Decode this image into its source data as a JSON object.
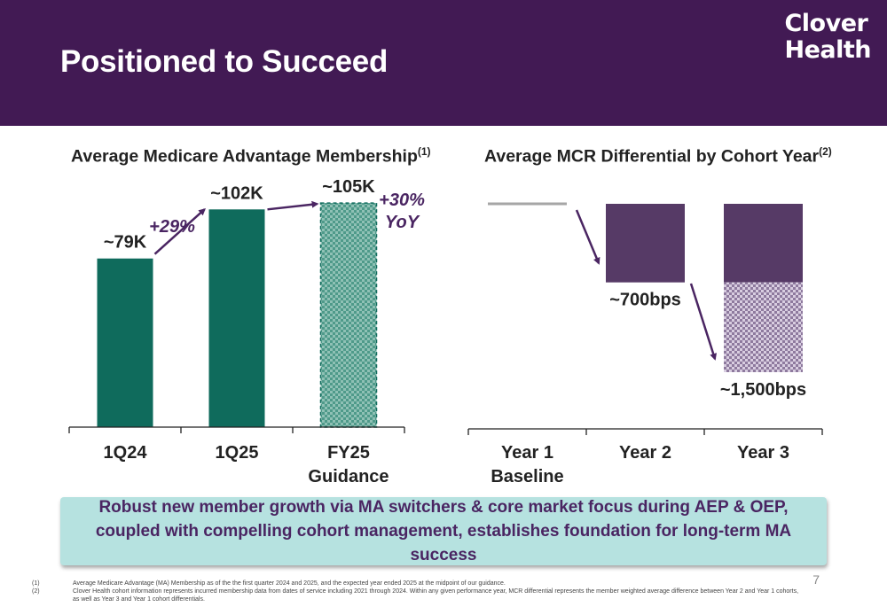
{
  "header": {
    "title": "Positioned to Succeed",
    "logo_line1": "Clover",
    "logo_line2": "Health"
  },
  "colors": {
    "header_bg": "#421a54",
    "bar_green": "#0f6b5c",
    "bar_purple": "#563a66",
    "arrow": "#4a2562",
    "callout_bg": "#b6e2e0"
  },
  "chart_data": [
    {
      "type": "bar",
      "title": "Average Medicare Advantage Membership",
      "title_ref": "(1)",
      "categories": [
        "1Q24",
        "1Q25",
        "FY25 Guidance"
      ],
      "category_lines": [
        [
          "1Q24"
        ],
        [
          "1Q25"
        ],
        [
          "FY25",
          "Guidance"
        ]
      ],
      "values": [
        79,
        102,
        105
      ],
      "value_labels": [
        "~79K",
        "~102K",
        "~105K"
      ],
      "unit": "K members",
      "ylim": [
        0,
        115
      ],
      "patterned": [
        false,
        false,
        true
      ],
      "growth_annotations": [
        {
          "from": 0,
          "to": 1,
          "lines": [
            "+29%"
          ]
        },
        {
          "from": 1,
          "to": 2,
          "lines": [
            "+30%",
            "YoY"
          ]
        }
      ],
      "grid": false,
      "legend": "none"
    },
    {
      "type": "bar",
      "title": "Average MCR Differential by Cohort Year",
      "title_ref": "(2)",
      "categories": [
        "Year 1 Baseline",
        "Year 2",
        "Year 3"
      ],
      "category_lines": [
        [
          "Year 1",
          "Baseline"
        ],
        [
          "Year 2"
        ],
        [
          "Year 3"
        ]
      ],
      "values": [
        0,
        -700,
        -1500
      ],
      "value_labels": [
        "",
        "~700bps",
        "~1,500bps"
      ],
      "unit": "bps",
      "ylim": [
        -2000,
        0
      ],
      "stacked_note": "Year 3 shows the ~700bps segment plus a patterned incremental segment to ~1,500bps",
      "grid": false,
      "legend": "none"
    }
  ],
  "callout": {
    "text": "Robust new member growth via MA switchers & core market focus during AEP & OEP, coupled with compelling cohort management, establishes foundation for long-term MA success"
  },
  "page_number": "7",
  "footnotes": [
    {
      "num": "(1)",
      "text": "Average Medicare Advantage (MA) Membership as of the the first quarter 2024 and 2025,  and the expected year ended 2025 at the midpoint of our guidance."
    },
    {
      "num": "(2)",
      "text": "Clover Health cohort information represents incurred membership data from dates of service including 2021 through 2024. Within any given performance year, MCR differential represents the member weighted average difference between Year 2 and Year 1 cohorts, as well as Year 3 and Year 1 cohort differentials."
    }
  ]
}
